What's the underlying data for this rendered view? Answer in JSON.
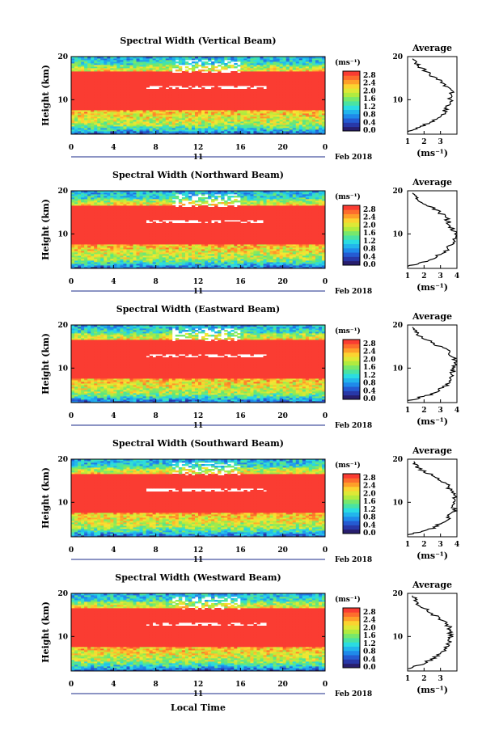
{
  "figure": {
    "x_axis_label": "Local Time",
    "day_label": "11",
    "month_label": "Feb 2018",
    "y_axis_label": "Height (km)",
    "unit_label": "(ms⁻¹)",
    "profile_title": "Average",
    "profile_unit": "(ms⁻¹)",
    "colorbar_ticks": [
      "0.0",
      "0.4",
      "0.8",
      "1.2",
      "1.6",
      "2.0",
      "2.4",
      "2.8"
    ],
    "x_ticks": [
      "0",
      "4",
      "8",
      "12",
      "16",
      "20",
      "0"
    ],
    "y_ticks": [
      "10",
      "20"
    ]
  },
  "chart_data": [
    {
      "type": "heatmap",
      "title": "Spectral Width (Vertical Beam)",
      "x": [
        0,
        24
      ],
      "ylim": [
        2,
        20
      ],
      "zlim": [
        0.0,
        2.8
      ],
      "profile": {
        "title": "Average",
        "xlim": [
          1,
          4
        ],
        "x_ticks": [
          "1",
          "2",
          "3"
        ],
        "heights": [
          2.5,
          4,
          6,
          8,
          10,
          12,
          14,
          16,
          18,
          19.5
        ],
        "values": [
          1.0,
          2.0,
          3.0,
          3.4,
          3.6,
          3.7,
          3.1,
          2.3,
          1.6,
          1.3
        ]
      }
    },
    {
      "type": "heatmap",
      "title": "Spectral Width (Northward Beam)",
      "x": [
        0,
        24
      ],
      "ylim": [
        2,
        20
      ],
      "zlim": [
        0.0,
        2.8
      ],
      "profile": {
        "title": "Average",
        "xlim": [
          1,
          4
        ],
        "x_ticks": [
          "1",
          "2",
          "3",
          "4"
        ],
        "heights": [
          2.5,
          4,
          6,
          8,
          10,
          12,
          14,
          16,
          18,
          19.5
        ],
        "values": [
          1.1,
          2.4,
          3.3,
          3.7,
          3.9,
          3.6,
          3.3,
          2.6,
          1.6,
          1.3
        ]
      }
    },
    {
      "type": "heatmap",
      "title": "Spectral Width (Eastward Beam)",
      "x": [
        0,
        24
      ],
      "ylim": [
        2,
        20
      ],
      "zlim": [
        0.0,
        2.8
      ],
      "profile": {
        "title": "Average",
        "xlim": [
          1,
          4
        ],
        "x_ticks": [
          "1",
          "2",
          "3",
          "4"
        ],
        "heights": [
          2.5,
          4,
          6,
          8,
          10,
          12,
          14,
          16,
          18,
          19.5
        ],
        "values": [
          1.1,
          2.5,
          3.3,
          3.7,
          3.8,
          3.9,
          3.5,
          2.4,
          1.6,
          1.3
        ]
      }
    },
    {
      "type": "heatmap",
      "title": "Spectral Width (Southward Beam)",
      "x": [
        0,
        24
      ],
      "ylim": [
        2,
        20
      ],
      "zlim": [
        0.0,
        2.8
      ],
      "profile": {
        "title": "Average",
        "xlim": [
          1,
          4
        ],
        "x_ticks": [
          "1",
          "2",
          "3",
          "4"
        ],
        "heights": [
          2.5,
          4,
          6,
          8,
          10,
          12,
          14,
          16,
          18,
          19.5
        ],
        "values": [
          1.1,
          2.5,
          3.4,
          3.8,
          3.9,
          3.8,
          3.4,
          2.6,
          1.6,
          1.4
        ]
      }
    },
    {
      "type": "heatmap",
      "title": "Spectral Width (Westward Beam)",
      "x": [
        0,
        24
      ],
      "ylim": [
        2,
        20
      ],
      "zlim": [
        0.0,
        2.8
      ],
      "profile": {
        "title": "Average",
        "xlim": [
          1,
          4
        ],
        "x_ticks": [
          "1",
          "2",
          "3"
        ],
        "heights": [
          2.5,
          4,
          6,
          8,
          10,
          12,
          14,
          16,
          18,
          19.5
        ],
        "values": [
          1.1,
          2.1,
          3.0,
          3.5,
          3.6,
          3.6,
          3.0,
          2.2,
          1.5,
          1.3
        ]
      }
    }
  ]
}
